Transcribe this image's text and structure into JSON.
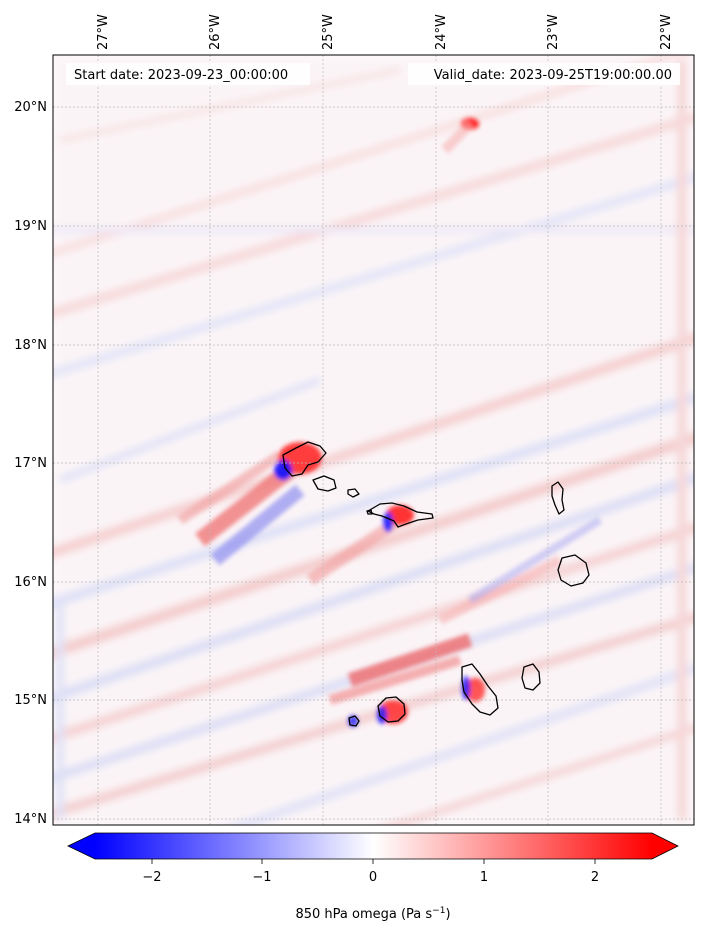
{
  "header": {
    "start_date": "Start date: 2023-09-23_00:00:00",
    "valid_date": "Valid_date: 2023-09-25T19:00:00.00"
  },
  "map": {
    "projection": "PlateCarree",
    "lon_range": [
      -27.4,
      -21.85
    ],
    "lat_range": [
      13.95,
      20.45
    ],
    "gridlines": true,
    "lon_ticks": [
      {
        "value": -27,
        "label": "27°W"
      },
      {
        "value": -26,
        "label": "26°W"
      },
      {
        "value": -25,
        "label": "25°W"
      },
      {
        "value": -24,
        "label": "24°W"
      },
      {
        "value": -23,
        "label": "23°W"
      },
      {
        "value": -22,
        "label": "22°W"
      }
    ],
    "lat_ticks": [
      {
        "value": 20,
        "label": "20°N"
      },
      {
        "value": 19,
        "label": "19°N"
      },
      {
        "value": 18,
        "label": "18°N"
      },
      {
        "value": 17,
        "label": "17°N"
      },
      {
        "value": 16,
        "label": "16°N"
      },
      {
        "value": 15,
        "label": "15°N"
      },
      {
        "value": 14,
        "label": "14°N"
      }
    ],
    "field_colors": {
      "negative": "#0000ff",
      "neutral": "#ffffff",
      "positive": "#ff0000"
    },
    "coastline_color": "#000000"
  },
  "colorbar": {
    "label": "850 hPa omega (Pa s",
    "label_sup": "−1",
    "label_end": ")",
    "range": [
      -2.6,
      2.6
    ],
    "extend": "both",
    "ticks": [
      {
        "value": -2,
        "label": "−2"
      },
      {
        "value": -1,
        "label": "−1"
      },
      {
        "value": 0,
        "label": "0"
      },
      {
        "value": 1,
        "label": "1"
      },
      {
        "value": 2,
        "label": "2"
      }
    ],
    "colors": [
      "#0000ff",
      "#ffffff",
      "#ff0000"
    ]
  }
}
